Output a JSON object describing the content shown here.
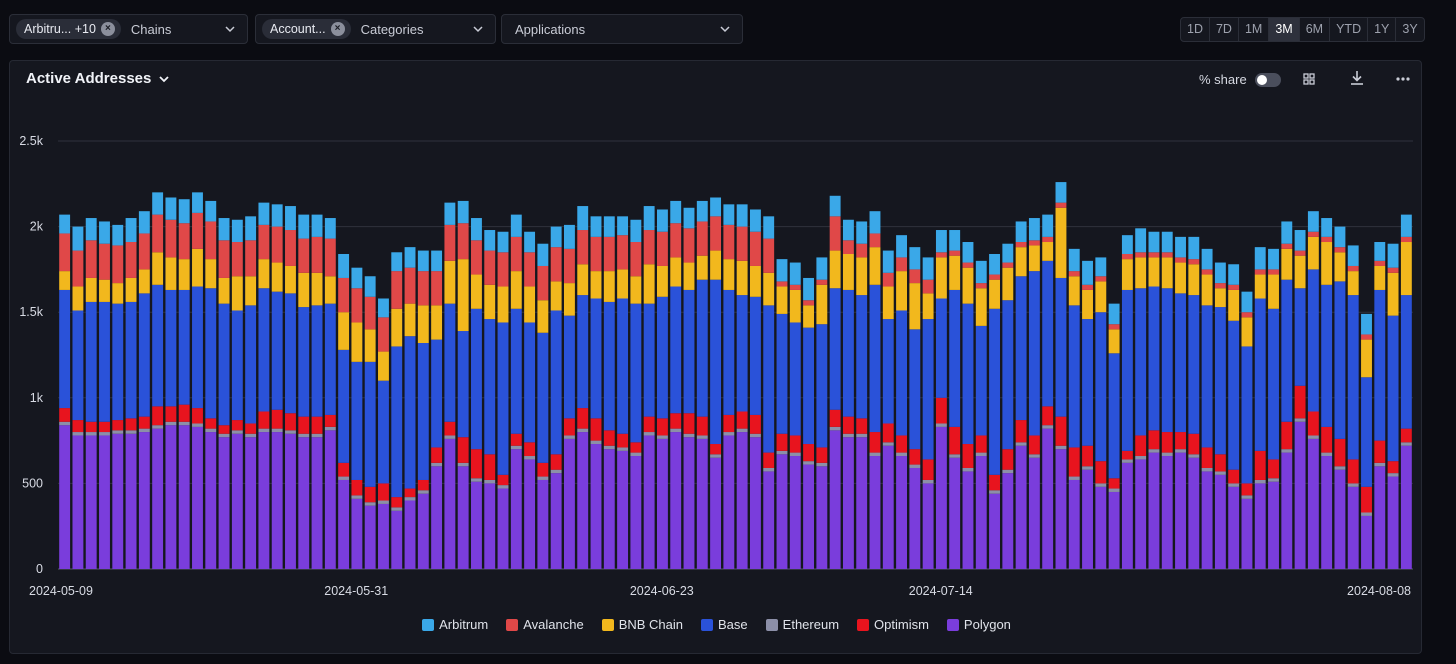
{
  "filters": {
    "chains": {
      "chip": "Arbitru... +10",
      "label": "Chains"
    },
    "categories": {
      "chip": "Account...",
      "label": "Categories"
    },
    "applications": {
      "label": "Applications"
    }
  },
  "time_ranges": [
    "1D",
    "7D",
    "1M",
    "3M",
    "6M",
    "YTD",
    "1Y",
    "3Y"
  ],
  "active_range": "3M",
  "panel": {
    "title": "Active Addresses",
    "share_label": "% share",
    "share_on": false
  },
  "colors": {
    "Arbitrum": "#3aa8e8",
    "Avalanche": "#e04848",
    "BNB Chain": "#f2b81d",
    "Base": "#2a52d9",
    "Ethereum": "#8c8fa8",
    "Optimism": "#e8141e",
    "Polygon": "#7a3ddc"
  },
  "chart_data": {
    "type": "bar",
    "stacked": true,
    "start_date": "2024-05-09",
    "end_date": "2024-08-08",
    "x_tick_labels": [
      "2024-05-09",
      "2024-05-31",
      "2024-06-23",
      "2024-07-14",
      "2024-08-08"
    ],
    "y_tick_labels": [
      "0",
      "500",
      "1k",
      "1.5k",
      "2k",
      "2.5k"
    ],
    "ylim": [
      0,
      2500
    ],
    "grid": true,
    "legend_position": "bottom",
    "series": [
      {
        "name": "Polygon",
        "values": [
          840,
          780,
          780,
          780,
          790,
          790,
          800,
          820,
          840,
          840,
          830,
          800,
          770,
          790,
          770,
          800,
          800,
          790,
          770,
          770,
          810,
          520,
          410,
          370,
          380,
          340,
          400,
          440,
          600,
          760,
          600,
          510,
          500,
          470,
          700,
          640,
          520,
          560,
          760,
          800,
          730,
          700,
          690,
          660,
          780,
          760,
          800,
          770,
          760,
          650,
          780,
          800,
          770,
          570,
          670,
          660,
          610,
          600,
          810,
          770,
          770,
          660,
          720,
          660,
          590,
          500,
          830,
          650,
          570,
          660,
          440,
          560,
          720,
          650,
          820,
          700,
          520,
          580,
          480,
          450,
          620,
          640,
          680,
          660,
          680,
          650,
          570,
          550,
          480,
          410,
          500,
          510,
          680,
          860,
          760,
          660,
          580,
          480,
          310,
          600,
          540,
          720
        ]
      },
      {
        "name": "Ethereum",
        "values": [
          20,
          20,
          20,
          20,
          20,
          20,
          20,
          20,
          20,
          20,
          20,
          20,
          20,
          20,
          20,
          20,
          20,
          20,
          20,
          20,
          20,
          20,
          20,
          20,
          20,
          20,
          20,
          20,
          20,
          20,
          20,
          20,
          20,
          20,
          20,
          20,
          20,
          20,
          20,
          20,
          20,
          20,
          20,
          20,
          20,
          20,
          20,
          20,
          20,
          20,
          20,
          20,
          20,
          20,
          20,
          20,
          20,
          20,
          20,
          20,
          20,
          20,
          20,
          20,
          20,
          20,
          20,
          20,
          20,
          20,
          20,
          20,
          20,
          20,
          20,
          20,
          20,
          20,
          20,
          20,
          20,
          20,
          20,
          20,
          20,
          20,
          20,
          20,
          20,
          20,
          20,
          20,
          20,
          20,
          20,
          20,
          20,
          20,
          20,
          20,
          20,
          20
        ]
      },
      {
        "name": "Optimism",
        "values": [
          80,
          70,
          60,
          60,
          60,
          70,
          70,
          110,
          90,
          100,
          90,
          60,
          50,
          60,
          60,
          100,
          110,
          100,
          100,
          100,
          70,
          80,
          90,
          90,
          100,
          60,
          50,
          60,
          90,
          80,
          150,
          170,
          150,
          60,
          70,
          80,
          80,
          90,
          100,
          120,
          130,
          90,
          80,
          60,
          90,
          100,
          90,
          120,
          110,
          60,
          100,
          100,
          110,
          90,
          100,
          100,
          100,
          90,
          100,
          100,
          90,
          120,
          110,
          100,
          90,
          120,
          150,
          160,
          140,
          100,
          90,
          120,
          130,
          110,
          110,
          170,
          170,
          120,
          130,
          60,
          50,
          120,
          110,
          120,
          100,
          120,
          120,
          100,
          80,
          70,
          170,
          110,
          160,
          190,
          140,
          150,
          160,
          140,
          150,
          130,
          70,
          80
        ]
      },
      {
        "name": "Base",
        "values": [
          690,
          640,
          700,
          700,
          680,
          680,
          720,
          710,
          680,
          670,
          710,
          760,
          710,
          640,
          690,
          720,
          690,
          700,
          640,
          650,
          650,
          660,
          690,
          730,
          600,
          880,
          890,
          800,
          630,
          690,
          620,
          820,
          790,
          890,
          730,
          700,
          760,
          840,
          600,
          660,
          700,
          750,
          790,
          810,
          660,
          710,
          740,
          720,
          800,
          960,
          730,
          680,
          690,
          860,
          700,
          660,
          680,
          720,
          710,
          740,
          720,
          860,
          610,
          730,
          700,
          820,
          580,
          800,
          820,
          640,
          970,
          870,
          840,
          960,
          850,
          810,
          830,
          740,
          870,
          730,
          940,
          860,
          840,
          840,
          810,
          810,
          830,
          860,
          870,
          800,
          890,
          880,
          830,
          570,
          830,
          830,
          920,
          960,
          640,
          880,
          850,
          780
        ]
      },
      {
        "name": "BNB Chain",
        "values": [
          110,
          140,
          140,
          130,
          120,
          140,
          140,
          190,
          190,
          180,
          220,
          170,
          150,
          200,
          170,
          170,
          170,
          160,
          200,
          190,
          160,
          220,
          230,
          190,
          170,
          220,
          190,
          220,
          200,
          250,
          420,
          200,
          200,
          210,
          220,
          210,
          190,
          170,
          190,
          180,
          160,
          180,
          170,
          160,
          230,
          180,
          170,
          160,
          140,
          170,
          180,
          200,
          180,
          190,
          160,
          190,
          130,
          230,
          220,
          210,
          220,
          220,
          190,
          230,
          270,
          150,
          240,
          200,
          210,
          220,
          170,
          190,
          170,
          150,
          110,
          410,
          170,
          170,
          180,
          140,
          180,
          180,
          170,
          180,
          180,
          180,
          180,
          110,
          180,
          170,
          140,
          200,
          180,
          190,
          190,
          250,
          170,
          140,
          220,
          140,
          250,
          310
        ]
      },
      {
        "name": "Avalanche",
        "values": [
          220,
          210,
          220,
          210,
          220,
          210,
          210,
          220,
          220,
          210,
          210,
          220,
          220,
          200,
          210,
          200,
          210,
          210,
          200,
          210,
          220,
          200,
          200,
          190,
          200,
          220,
          210,
          200,
          200,
          210,
          210,
          200,
          200,
          200,
          200,
          200,
          200,
          200,
          200,
          200,
          200,
          200,
          200,
          200,
          200,
          200,
          200,
          200,
          200,
          200,
          200,
          200,
          200,
          200,
          30,
          30,
          30,
          30,
          200,
          80,
          80,
          80,
          80,
          80,
          80,
          80,
          30,
          30,
          30,
          30,
          30,
          30,
          30,
          30,
          30,
          30,
          30,
          30,
          30,
          30,
          30,
          30,
          30,
          30,
          30,
          30,
          30,
          30,
          30,
          30,
          30,
          30,
          30,
          30,
          30,
          30,
          30,
          30,
          30,
          30,
          30,
          30
        ]
      },
      {
        "name": "Arbitrum",
        "values": [
          110,
          140,
          130,
          130,
          120,
          140,
          130,
          130,
          130,
          140,
          120,
          120,
          130,
          130,
          140,
          130,
          130,
          140,
          140,
          130,
          120,
          140,
          120,
          120,
          110,
          110,
          120,
          120,
          120,
          130,
          130,
          130,
          120,
          120,
          130,
          120,
          130,
          120,
          140,
          140,
          120,
          120,
          110,
          130,
          140,
          130,
          130,
          120,
          120,
          110,
          120,
          130,
          130,
          130,
          130,
          130,
          130,
          130,
          120,
          120,
          130,
          130,
          130,
          130,
          130,
          130,
          130,
          120,
          120,
          130,
          120,
          110,
          120,
          130,
          130,
          120,
          130,
          140,
          110,
          120,
          110,
          140,
          120,
          120,
          120,
          130,
          120,
          120,
          120,
          120,
          130,
          120,
          130,
          120,
          120,
          110,
          120,
          120,
          120,
          110,
          140,
          130
        ]
      }
    ]
  }
}
